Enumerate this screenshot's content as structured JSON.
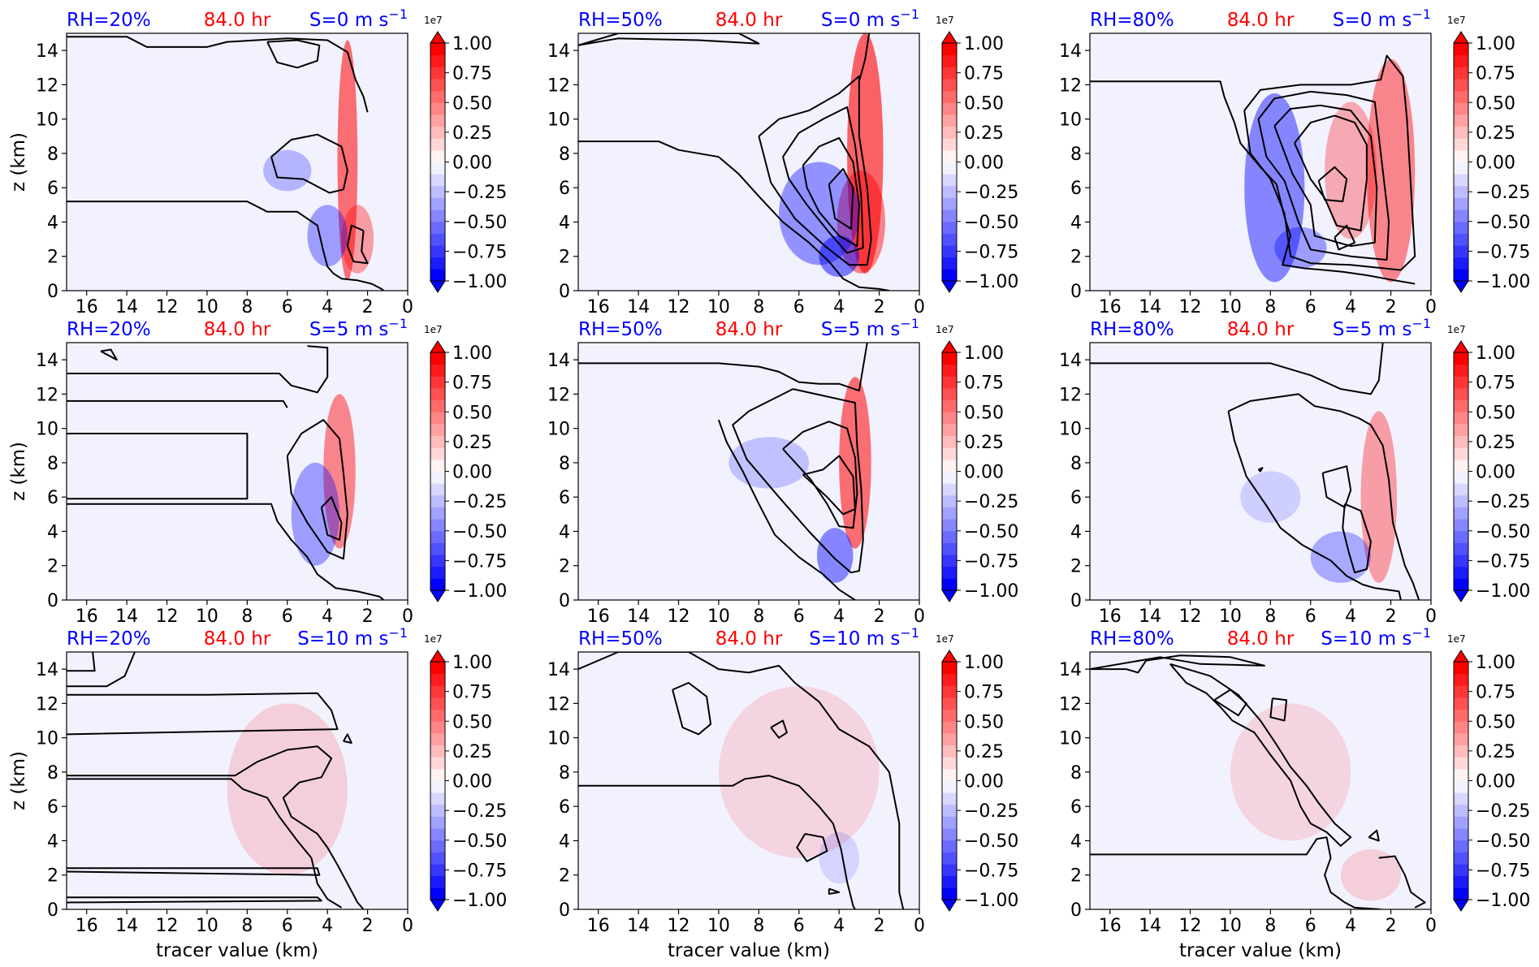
{
  "figure": {
    "colorbar": {
      "ticks": [
        "1.00",
        "0.75",
        "0.50",
        "0.25",
        "0.00",
        "−0.25",
        "−0.50",
        "−0.75",
        "−1.00"
      ],
      "exponent": "1e7",
      "high_color": "#ff0000",
      "low_color": "#0000ff",
      "mid_color": "#ffffff"
    },
    "colors": {
      "rh": "#0000ff",
      "time": "#ff0000",
      "shear": "#0000ff",
      "background_fill": "#f2f2ff",
      "contour": "#000000"
    }
  },
  "chart_data": [
    {
      "type": "heatmap",
      "panel": "1-1",
      "rh": "RH=20%",
      "time": "84.0 hr",
      "shear": "S=0 m s",
      "shear_unit_exp": "−1",
      "xlabel": "",
      "ylabel": "z (km)",
      "xlim": [
        17,
        0
      ],
      "ylim": [
        0,
        15
      ],
      "xticks": [
        "16",
        "14",
        "12",
        "10",
        "8",
        "6",
        "4",
        "2",
        "0"
      ],
      "yticks": [
        "0",
        "2",
        "4",
        "6",
        "8",
        "10",
        "12",
        "14"
      ]
    },
    {
      "type": "heatmap",
      "panel": "1-2",
      "rh": "RH=50%",
      "time": "84.0 hr",
      "shear": "S=0 m s",
      "shear_unit_exp": "−1",
      "xlabel": "",
      "ylabel": "",
      "xlim": [
        17,
        0
      ],
      "ylim": [
        0,
        15
      ],
      "xticks": [
        "16",
        "14",
        "12",
        "10",
        "8",
        "6",
        "4",
        "2",
        "0"
      ],
      "yticks": [
        "0",
        "2",
        "4",
        "6",
        "8",
        "10",
        "12",
        "14"
      ]
    },
    {
      "type": "heatmap",
      "panel": "1-3",
      "rh": "RH=80%",
      "time": "84.0 hr",
      "shear": "S=0 m s",
      "shear_unit_exp": "−1",
      "xlabel": "",
      "ylabel": "",
      "xlim": [
        17,
        0
      ],
      "ylim": [
        0,
        15
      ],
      "xticks": [
        "16",
        "14",
        "12",
        "10",
        "8",
        "6",
        "4",
        "2",
        "0"
      ],
      "yticks": [
        "0",
        "2",
        "4",
        "6",
        "8",
        "10",
        "12",
        "14"
      ]
    },
    {
      "type": "heatmap",
      "panel": "2-1",
      "rh": "RH=20%",
      "time": "84.0 hr",
      "shear": "S=5 m s",
      "shear_unit_exp": "−1",
      "xlabel": "",
      "ylabel": "z (km)",
      "xlim": [
        17,
        0
      ],
      "ylim": [
        0,
        15
      ],
      "xticks": [
        "16",
        "14",
        "12",
        "10",
        "8",
        "6",
        "4",
        "2",
        "0"
      ],
      "yticks": [
        "0",
        "2",
        "4",
        "6",
        "8",
        "10",
        "12",
        "14"
      ]
    },
    {
      "type": "heatmap",
      "panel": "2-2",
      "rh": "RH=50%",
      "time": "84.0 hr",
      "shear": "S=5 m s",
      "shear_unit_exp": "−1",
      "xlabel": "",
      "ylabel": "",
      "xlim": [
        17,
        0
      ],
      "ylim": [
        0,
        15
      ],
      "xticks": [
        "16",
        "14",
        "12",
        "10",
        "8",
        "6",
        "4",
        "2",
        "0"
      ],
      "yticks": [
        "0",
        "2",
        "4",
        "6",
        "8",
        "10",
        "12",
        "14"
      ]
    },
    {
      "type": "heatmap",
      "panel": "2-3",
      "rh": "RH=80%",
      "time": "84.0 hr",
      "shear": "S=5 m s",
      "shear_unit_exp": "−1",
      "xlabel": "",
      "ylabel": "",
      "xlim": [
        17,
        0
      ],
      "ylim": [
        0,
        15
      ],
      "xticks": [
        "16",
        "14",
        "12",
        "10",
        "8",
        "6",
        "4",
        "2",
        "0"
      ],
      "yticks": [
        "0",
        "2",
        "4",
        "6",
        "8",
        "10",
        "12",
        "14"
      ]
    },
    {
      "type": "heatmap",
      "panel": "3-1",
      "rh": "RH=20%",
      "time": "84.0 hr",
      "shear": "S=10 m s",
      "shear_unit_exp": "−1",
      "xlabel": "tracer value (km)",
      "ylabel": "z (km)",
      "xlim": [
        17,
        0
      ],
      "ylim": [
        0,
        15
      ],
      "xticks": [
        "16",
        "14",
        "12",
        "10",
        "8",
        "6",
        "4",
        "2",
        "0"
      ],
      "yticks": [
        "0",
        "2",
        "4",
        "6",
        "8",
        "10",
        "12",
        "14"
      ]
    },
    {
      "type": "heatmap",
      "panel": "3-2",
      "rh": "RH=50%",
      "time": "84.0 hr",
      "shear": "S=10 m s",
      "shear_unit_exp": "−1",
      "xlabel": "tracer value (km)",
      "ylabel": "",
      "xlim": [
        17,
        0
      ],
      "ylim": [
        0,
        15
      ],
      "xticks": [
        "16",
        "14",
        "12",
        "10",
        "8",
        "6",
        "4",
        "2",
        "0"
      ],
      "yticks": [
        "0",
        "2",
        "4",
        "6",
        "8",
        "10",
        "12",
        "14"
      ]
    },
    {
      "type": "heatmap",
      "panel": "3-3",
      "rh": "RH=80%",
      "time": "84.0 hr",
      "shear": "S=10 m s",
      "shear_unit_exp": "−1",
      "xlabel": "tracer value (km)",
      "ylabel": "",
      "xlim": [
        17,
        0
      ],
      "ylim": [
        0,
        15
      ],
      "xticks": [
        "16",
        "14",
        "12",
        "10",
        "8",
        "6",
        "4",
        "2",
        "0"
      ],
      "yticks": [
        "0",
        "2",
        "4",
        "6",
        "8",
        "10",
        "12",
        "14"
      ]
    }
  ]
}
